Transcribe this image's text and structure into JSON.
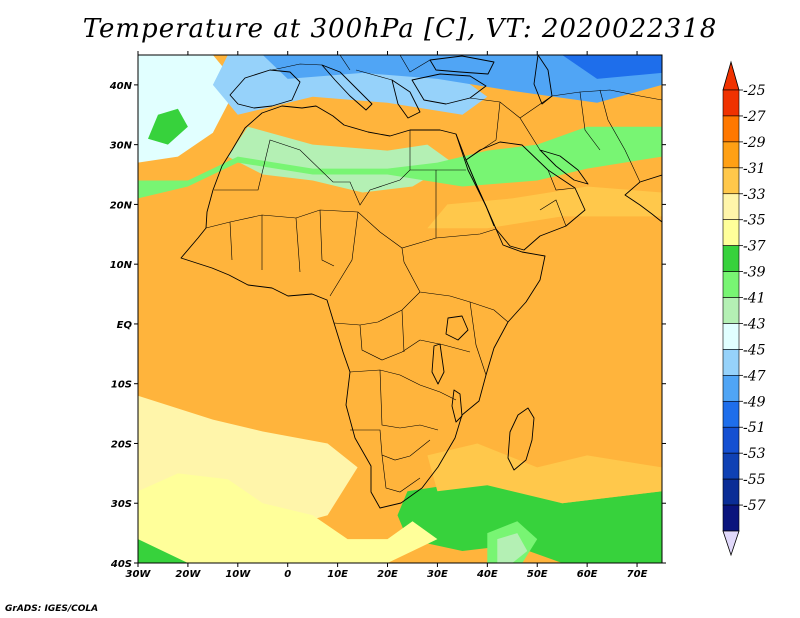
{
  "title": "Temperature at 300hPa [C], VT: 2020022318",
  "credit": "GrADS: IGES/COLA",
  "map": {
    "lon_range": [
      -30,
      75
    ],
    "lat_range": [
      -40,
      45
    ],
    "lon_ticks": [
      {
        "value": -30,
        "label": "30W"
      },
      {
        "value": -20,
        "label": "20W"
      },
      {
        "value": -10,
        "label": "10W"
      },
      {
        "value": 0,
        "label": "0"
      },
      {
        "value": 10,
        "label": "10E"
      },
      {
        "value": 20,
        "label": "20E"
      },
      {
        "value": 30,
        "label": "30E"
      },
      {
        "value": 40,
        "label": "40E"
      },
      {
        "value": 50,
        "label": "50E"
      },
      {
        "value": 60,
        "label": "60E"
      },
      {
        "value": 70,
        "label": "70E"
      }
    ],
    "lat_ticks": [
      {
        "value": 40,
        "label": "40N"
      },
      {
        "value": 30,
        "label": "30N"
      },
      {
        "value": 20,
        "label": "20N"
      },
      {
        "value": 10,
        "label": "10N"
      },
      {
        "value": 0,
        "label": "EQ"
      },
      {
        "value": -10,
        "label": "10S"
      },
      {
        "value": -20,
        "label": "20S"
      },
      {
        "value": -30,
        "label": "30S"
      },
      {
        "value": -40,
        "label": "40S"
      }
    ],
    "fields": [
      {
        "level": "-43",
        "color": "#e1ffff",
        "points": [
          [
            -30,
            45
          ],
          [
            -15,
            45
          ],
          [
            -10,
            40
          ],
          [
            -15,
            32
          ],
          [
            -22,
            28
          ],
          [
            -30,
            27
          ]
        ]
      },
      {
        "level": "-45",
        "color": "#96d2fa",
        "points": [
          [
            -12,
            45
          ],
          [
            20,
            45
          ],
          [
            35,
            41
          ],
          [
            40,
            38
          ],
          [
            35,
            35
          ],
          [
            20,
            37
          ],
          [
            5,
            38
          ],
          [
            -10,
            35
          ],
          [
            -15,
            40
          ]
        ]
      },
      {
        "level": "-47",
        "color": "#50a5f5",
        "points": [
          [
            -5,
            45
          ],
          [
            35,
            45
          ],
          [
            60,
            45
          ],
          [
            75,
            45
          ],
          [
            75,
            40
          ],
          [
            62,
            37
          ],
          [
            45,
            39
          ],
          [
            30,
            41
          ],
          [
            15,
            42
          ],
          [
            0,
            41
          ]
        ]
      },
      {
        "level": "-49",
        "color": "#1e6eeb",
        "points": [
          [
            55,
            45
          ],
          [
            75,
            45
          ],
          [
            75,
            42
          ],
          [
            62,
            41
          ]
        ]
      },
      {
        "level": "-41",
        "color": "#b4f0b4",
        "points": [
          [
            -8,
            33
          ],
          [
            5,
            30
          ],
          [
            20,
            29
          ],
          [
            28,
            30
          ],
          [
            33,
            27
          ],
          [
            25,
            23
          ],
          [
            15,
            22
          ],
          [
            5,
            24
          ],
          [
            -5,
            25
          ],
          [
            -12,
            28
          ]
        ]
      },
      {
        "level": "-39",
        "color": "#78f573",
        "points": [
          [
            -30,
            21
          ],
          [
            -20,
            23
          ],
          [
            -10,
            27
          ],
          [
            5,
            25
          ],
          [
            20,
            25
          ],
          [
            35,
            23
          ],
          [
            50,
            24
          ],
          [
            60,
            26
          ],
          [
            75,
            28
          ],
          [
            75,
            33
          ],
          [
            60,
            33
          ],
          [
            50,
            30
          ],
          [
            40,
            29
          ],
          [
            30,
            27
          ],
          [
            20,
            26
          ],
          [
            5,
            26
          ],
          [
            -10,
            28
          ],
          [
            -20,
            24
          ],
          [
            -30,
            24
          ]
        ]
      },
      {
        "level": "-37",
        "color": "#37d23c",
        "points": [
          [
            -26,
            35
          ],
          [
            -22,
            36
          ],
          [
            -20,
            33
          ],
          [
            -24,
            30
          ],
          [
            -28,
            31
          ]
        ]
      },
      {
        "level": "-37",
        "color": "#37d23c",
        "points": [
          [
            24,
            -28
          ],
          [
            40,
            -26
          ],
          [
            55,
            -30
          ],
          [
            75,
            -28
          ],
          [
            75,
            -40
          ],
          [
            55,
            -40
          ],
          [
            45,
            -37
          ],
          [
            35,
            -38
          ],
          [
            24,
            -36
          ],
          [
            22,
            -32
          ]
        ]
      },
      {
        "level": "-37",
        "color": "#37d23c",
        "points": [
          [
            -30,
            -32
          ],
          [
            -24,
            -35
          ],
          [
            -20,
            -40
          ],
          [
            -30,
            -40
          ]
        ]
      },
      {
        "level": "-39",
        "color": "#78f573",
        "points": [
          [
            40,
            -35
          ],
          [
            46,
            -33
          ],
          [
            50,
            -36
          ],
          [
            47,
            -40
          ],
          [
            40,
            -40
          ]
        ]
      },
      {
        "level": "-41",
        "color": "#b4f0b4",
        "points": [
          [
            42,
            -36
          ],
          [
            46,
            -35
          ],
          [
            48,
            -38
          ],
          [
            45,
            -40
          ],
          [
            42,
            -40
          ]
        ]
      },
      {
        "level": "-33",
        "color": "#fff5aa",
        "points": [
          [
            -30,
            -12
          ],
          [
            -15,
            -16
          ],
          [
            -5,
            -18
          ],
          [
            8,
            -20
          ],
          [
            14,
            -24
          ],
          [
            8,
            -32
          ],
          [
            -5,
            -35
          ],
          [
            -25,
            -35
          ],
          [
            -30,
            -32
          ]
        ]
      },
      {
        "level": "-35",
        "color": "#ffff9a",
        "points": [
          [
            -30,
            -28
          ],
          [
            -22,
            -25
          ],
          [
            -12,
            -26
          ],
          [
            -5,
            -30
          ],
          [
            5,
            -32
          ],
          [
            12,
            -36
          ],
          [
            20,
            -36
          ],
          [
            25,
            -33
          ],
          [
            30,
            -36
          ],
          [
            20,
            -40
          ],
          [
            0,
            -40
          ],
          [
            -20,
            -40
          ],
          [
            -30,
            -36
          ]
        ]
      },
      {
        "level": "-31",
        "color": "#ffc84b",
        "points": [
          [
            28,
            -22
          ],
          [
            38,
            -20
          ],
          [
            50,
            -24
          ],
          [
            60,
            -22
          ],
          [
            75,
            -24
          ],
          [
            75,
            -28
          ],
          [
            55,
            -30
          ],
          [
            40,
            -27
          ],
          [
            30,
            -28
          ]
        ]
      },
      {
        "level": "-31",
        "color": "#ffc84b",
        "points": [
          [
            28,
            16
          ],
          [
            40,
            16
          ],
          [
            55,
            18
          ],
          [
            75,
            18
          ],
          [
            75,
            22
          ],
          [
            60,
            23
          ],
          [
            45,
            21
          ],
          [
            32,
            20
          ]
        ]
      }
    ]
  },
  "colorbar": {
    "top_arrow_color": "#f03200",
    "bottom_arrow_color": "#e0d8fa",
    "entries": [
      {
        "label": "-25",
        "color": "#f03200"
      },
      {
        "label": "-27",
        "color": "#ff7800"
      },
      {
        "label": "-29",
        "color": "#ffa014"
      },
      {
        "label": "-31",
        "color": "#ffc84b"
      },
      {
        "label": "-33",
        "color": "#fff5aa"
      },
      {
        "label": "-35",
        "color": "#ffff9a"
      },
      {
        "label": "-37",
        "color": "#37d23c"
      },
      {
        "label": "-39",
        "color": "#78f573"
      },
      {
        "label": "-41",
        "color": "#b4f0b4"
      },
      {
        "label": "-43",
        "color": "#e1ffff"
      },
      {
        "label": "-45",
        "color": "#96d2fa"
      },
      {
        "label": "-47",
        "color": "#50a5f5"
      },
      {
        "label": "-49",
        "color": "#1e6eeb"
      },
      {
        "label": "-51",
        "color": "#1450d2"
      },
      {
        "label": "-53",
        "color": "#0f41b4"
      },
      {
        "label": "-55",
        "color": "#0a2d96"
      },
      {
        "label": "-57",
        "color": "#0a147d"
      }
    ]
  }
}
